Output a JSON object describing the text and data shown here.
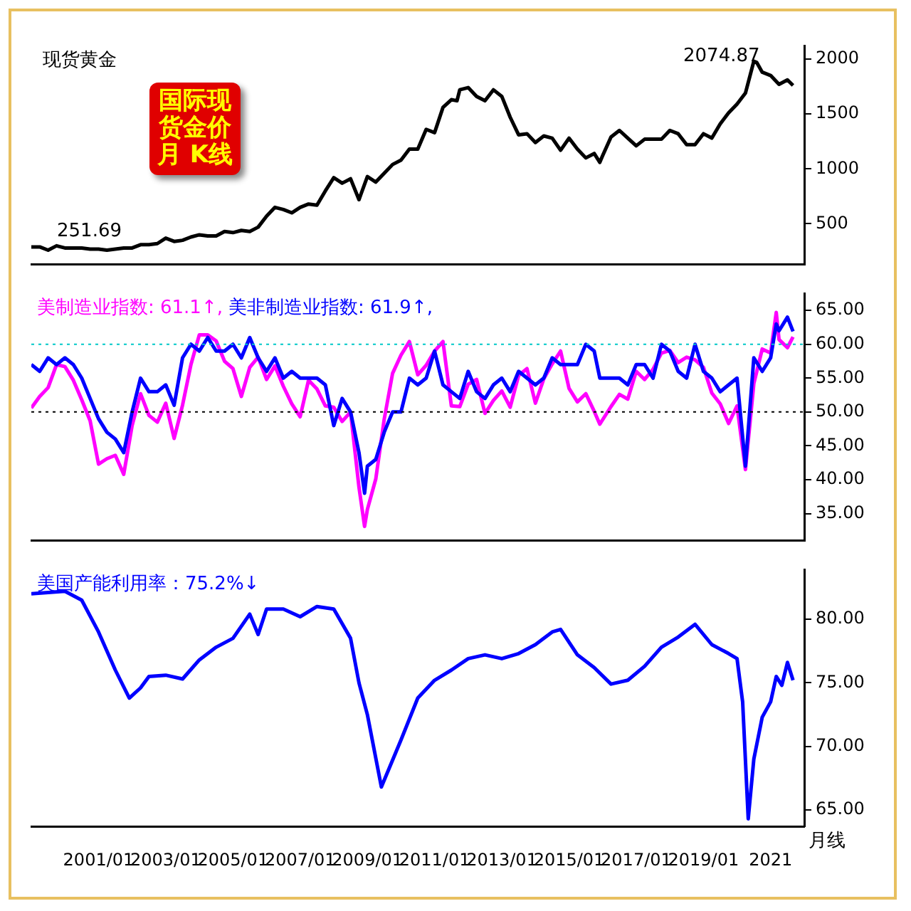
{
  "chart_data": [
    {
      "type": "line",
      "title": "现货黄金",
      "xlim": [
        "1999-01",
        "2022-01"
      ],
      "ylim": [
        130,
        2120
      ],
      "yticks": [
        500,
        1000,
        1500,
        2000
      ],
      "tick_labels": "y",
      "grid": false,
      "legend": false,
      "marker": "none",
      "annotations": [
        "国际现货金价月 K线",
        "2074.87",
        "251.69"
      ],
      "series": [
        {
          "color": "#000000",
          "x": [
            "1999-01",
            "1999-04",
            "1999-07",
            "1999-10",
            "2000-01",
            "2000-04",
            "2000-07",
            "2000-10",
            "2001-01",
            "2001-04",
            "2001-07",
            "2001-10",
            "2002-01",
            "2002-04",
            "2002-07",
            "2002-10",
            "2003-01",
            "2003-04",
            "2003-07",
            "2003-10",
            "2004-01",
            "2004-04",
            "2004-07",
            "2004-10",
            "2005-01",
            "2005-04",
            "2005-07",
            "2005-10",
            "2006-01",
            "2006-04",
            "2006-07",
            "2006-10",
            "2007-01",
            "2007-04",
            "2007-07",
            "2007-10",
            "2008-01",
            "2008-04",
            "2008-07",
            "2008-10",
            "2009-01",
            "2009-04",
            "2009-07",
            "2009-10",
            "2010-01",
            "2010-04",
            "2010-07",
            "2010-10",
            "2011-01",
            "2011-04",
            "2011-07",
            "2011-09",
            "2011-10",
            "2012-01",
            "2012-04",
            "2012-07",
            "2012-10",
            "2013-01",
            "2013-04",
            "2013-07",
            "2013-10",
            "2014-01",
            "2014-04",
            "2014-07",
            "2014-10",
            "2015-01",
            "2015-04",
            "2015-07",
            "2015-10",
            "2015-12",
            "2016-01",
            "2016-04",
            "2016-07",
            "2016-10",
            "2017-01",
            "2017-04",
            "2017-07",
            "2017-10",
            "2018-01",
            "2018-04",
            "2018-07",
            "2018-10",
            "2019-01",
            "2019-04",
            "2019-07",
            "2019-10",
            "2020-01",
            "2020-04",
            "2020-07",
            "2020-08",
            "2020-10",
            "2021-01",
            "2021-04",
            "2021-07",
            "2021-09"
          ],
          "values": [
            290,
            290,
            260,
            300,
            280,
            280,
            280,
            270,
            270,
            260,
            270,
            280,
            280,
            310,
            310,
            320,
            370,
            340,
            350,
            380,
            400,
            390,
            390,
            430,
            420,
            440,
            430,
            470,
            570,
            650,
            630,
            600,
            650,
            680,
            670,
            800,
            920,
            870,
            910,
            720,
            930,
            880,
            960,
            1040,
            1080,
            1180,
            1180,
            1360,
            1330,
            1560,
            1630,
            1620,
            1720,
            1740,
            1660,
            1620,
            1720,
            1660,
            1470,
            1310,
            1320,
            1240,
            1300,
            1280,
            1170,
            1280,
            1180,
            1100,
            1140,
            1060,
            1120,
            1290,
            1350,
            1280,
            1210,
            1270,
            1270,
            1270,
            1350,
            1320,
            1220,
            1220,
            1320,
            1280,
            1410,
            1510,
            1590,
            1690,
            1980,
            1970,
            1880,
            1850,
            1770,
            1810,
            1760
          ]
        }
      ]
    },
    {
      "type": "line",
      "xlim": [
        "1999-01",
        "2022-01"
      ],
      "ylim": [
        31,
        67.5
      ],
      "yticks": [
        {
          "value": 35,
          "label": "35.00"
        },
        {
          "value": 40,
          "label": "40.00"
        },
        {
          "value": 45,
          "label": "45.00"
        },
        {
          "value": 50,
          "label": "50.00"
        },
        {
          "value": 55,
          "label": "55.00"
        },
        {
          "value": 60,
          "label": "60.00"
        },
        {
          "value": 65,
          "label": "65.00"
        }
      ],
      "tick_labels": "y",
      "grid": false,
      "legend": "top left",
      "marker": "none",
      "ref_lines": [
        {
          "axis": "y",
          "value": 50,
          "color": "#000000",
          "line_style": "dotted"
        },
        {
          "axis": "y",
          "value": 60,
          "color": "#00c8c8",
          "line_style": "dotted"
        }
      ],
      "series": [
        {
          "name": "美制造业指数: 61.1↑,",
          "color": "#ff00ff",
          "x": [
            "1999-01",
            "1999-04",
            "1999-07",
            "1999-10",
            "2000-01",
            "2000-04",
            "2000-07",
            "2000-10",
            "2001-01",
            "2001-04",
            "2001-07",
            "2001-10",
            "2002-01",
            "2002-04",
            "2002-07",
            "2002-10",
            "2003-01",
            "2003-04",
            "2003-07",
            "2003-10",
            "2004-01",
            "2004-04",
            "2004-07",
            "2004-10",
            "2005-01",
            "2005-04",
            "2005-07",
            "2005-10",
            "2006-01",
            "2006-04",
            "2006-07",
            "2006-10",
            "2007-01",
            "2007-04",
            "2007-07",
            "2007-10",
            "2008-01",
            "2008-04",
            "2008-07",
            "2008-10",
            "2008-12",
            "2009-01",
            "2009-04",
            "2009-07",
            "2009-10",
            "2010-01",
            "2010-04",
            "2010-07",
            "2010-10",
            "2011-01",
            "2011-04",
            "2011-07",
            "2011-10",
            "2012-01",
            "2012-04",
            "2012-07",
            "2012-10",
            "2013-01",
            "2013-04",
            "2013-07",
            "2013-10",
            "2014-01",
            "2014-04",
            "2014-07",
            "2014-10",
            "2015-01",
            "2015-04",
            "2015-07",
            "2015-10",
            "2015-12",
            "2016-04",
            "2016-07",
            "2016-10",
            "2017-01",
            "2017-04",
            "2017-07",
            "2017-10",
            "2018-01",
            "2018-04",
            "2018-07",
            "2018-10",
            "2019-01",
            "2019-04",
            "2019-07",
            "2019-10",
            "2020-01",
            "2020-04",
            "2020-07",
            "2020-10",
            "2021-01",
            "2021-03",
            "2021-04",
            "2021-07",
            "2021-09"
          ],
          "values": [
            50.6,
            52.3,
            53.6,
            57.0,
            56.7,
            54.7,
            51.8,
            48.7,
            42.3,
            43.1,
            43.6,
            40.8,
            48.0,
            52.7,
            49.5,
            48.5,
            51.3,
            46.1,
            51.0,
            57.0,
            61.4,
            61.4,
            60.5,
            57.5,
            56.4,
            52.3,
            56.6,
            58.1,
            54.8,
            56.8,
            53.8,
            51.2,
            49.3,
            54.7,
            53.4,
            50.9,
            50.7,
            48.6,
            50.0,
            38.9,
            33.1,
            35.6,
            40.1,
            48.9,
            55.7,
            58.4,
            60.4,
            55.5,
            56.9,
            59.0,
            60.4,
            50.9,
            50.8,
            54.1,
            54.8,
            49.8,
            51.7,
            53.1,
            50.7,
            55.4,
            56.4,
            51.3,
            54.9,
            57.1,
            59.0,
            53.5,
            51.5,
            52.7,
            50.1,
            48.2,
            50.8,
            52.6,
            51.9,
            56.0,
            54.8,
            56.3,
            58.7,
            59.1,
            57.3,
            58.1,
            57.7,
            56.6,
            52.8,
            51.2,
            48.3,
            50.9,
            41.5,
            54.2,
            59.3,
            58.7,
            64.7,
            60.7,
            59.5,
            61.1
          ]
        },
        {
          "name": "美非制造业指数: 61.9↑,",
          "color": "#0000ff",
          "x": [
            "1999-01",
            "1999-04",
            "1999-07",
            "1999-10",
            "2000-01",
            "2000-04",
            "2000-07",
            "2000-10",
            "2001-01",
            "2001-04",
            "2001-07",
            "2001-10",
            "2002-01",
            "2002-04",
            "2002-07",
            "2002-10",
            "2003-01",
            "2003-04",
            "2003-07",
            "2003-10",
            "2004-01",
            "2004-04",
            "2004-07",
            "2004-10",
            "2005-01",
            "2005-04",
            "2005-07",
            "2005-10",
            "2006-01",
            "2006-04",
            "2006-07",
            "2006-10",
            "2007-01",
            "2007-04",
            "2007-07",
            "2007-10",
            "2008-01",
            "2008-04",
            "2008-07",
            "2008-10",
            "2008-12",
            "2009-01",
            "2009-04",
            "2009-07",
            "2009-10",
            "2010-01",
            "2010-04",
            "2010-07",
            "2010-10",
            "2011-01",
            "2011-04",
            "2011-07",
            "2011-10",
            "2012-01",
            "2012-04",
            "2012-07",
            "2012-10",
            "2013-01",
            "2013-04",
            "2013-07",
            "2013-10",
            "2014-01",
            "2014-04",
            "2014-07",
            "2014-10",
            "2015-01",
            "2015-04",
            "2015-07",
            "2015-10",
            "2015-12",
            "2016-04",
            "2016-07",
            "2016-10",
            "2017-01",
            "2017-04",
            "2017-07",
            "2017-10",
            "2018-01",
            "2018-04",
            "2018-07",
            "2018-10",
            "2019-01",
            "2019-04",
            "2019-07",
            "2019-10",
            "2020-01",
            "2020-04",
            "2020-07",
            "2020-10",
            "2021-01",
            "2021-03",
            "2021-04",
            "2021-07",
            "2021-09"
          ],
          "values": [
            57,
            56,
            58,
            57,
            58,
            57,
            55,
            52,
            49,
            47,
            46,
            44,
            50,
            55,
            53,
            53,
            54,
            51,
            58,
            60,
            59,
            61,
            59,
            59,
            60,
            58,
            61,
            58,
            56,
            58,
            55,
            56,
            55,
            55,
            55,
            54,
            48,
            52,
            50,
            44,
            38,
            42,
            43,
            47,
            50,
            50,
            55,
            54,
            55,
            59,
            54,
            53,
            52,
            56,
            53,
            52,
            54,
            55,
            53,
            56,
            55,
            54,
            55,
            58,
            57,
            57,
            57,
            60,
            59,
            55,
            55,
            55,
            54,
            57,
            57,
            55,
            60,
            59,
            56,
            55,
            60,
            56,
            55,
            53,
            54,
            55,
            42,
            58,
            56,
            58,
            63,
            62,
            64,
            61.9
          ]
        }
      ]
    },
    {
      "type": "line",
      "xlabel": "月线",
      "xlim": [
        "1999-01",
        "2022-01"
      ],
      "xticks": [
        {
          "value": "2001-01",
          "label": "2001/01"
        },
        {
          "value": "2003-01",
          "label": "2003/01"
        },
        {
          "value": "2005-01",
          "label": "2005/01"
        },
        {
          "value": "2007-01",
          "label": "2007/01"
        },
        {
          "value": "2009-01",
          "label": "2009/01"
        },
        {
          "value": "2011-01",
          "label": "2011/01"
        },
        {
          "value": "2013-01",
          "label": "2013/01"
        },
        {
          "value": "2015-01",
          "label": "2015/01"
        },
        {
          "value": "2017-01",
          "label": "2017/01"
        },
        {
          "value": "2019-01",
          "label": "2019/01"
        },
        {
          "value": "2021-01",
          "label": "2021"
        }
      ],
      "ylim": [
        63.7,
        83.9
      ],
      "yticks": [
        {
          "value": 65,
          "label": "65.00"
        },
        {
          "value": 70,
          "label": "70.00"
        },
        {
          "value": 75,
          "label": "75.00"
        },
        {
          "value": 80,
          "label": "80.00"
        }
      ],
      "grid": false,
      "legend": "top left",
      "marker": "none",
      "series": [
        {
          "name": "美国产能利用率：75.2%↓",
          "color": "#0000ff",
          "x": [
            "1999-01",
            "2000-01",
            "2000-07",
            "2001-01",
            "2001-07",
            "2001-12",
            "2002-04",
            "2002-07",
            "2003-01",
            "2003-07",
            "2004-01",
            "2004-07",
            "2005-01",
            "2005-07",
            "2005-10",
            "2006-01",
            "2006-07",
            "2007-01",
            "2007-07",
            "2008-01",
            "2008-07",
            "2008-10",
            "2009-01",
            "2009-06",
            "2010-01",
            "2010-07",
            "2011-01",
            "2011-07",
            "2012-01",
            "2012-07",
            "2013-01",
            "2013-07",
            "2014-01",
            "2014-07",
            "2014-10",
            "2015-04",
            "2015-10",
            "2016-04",
            "2016-10",
            "2017-04",
            "2017-10",
            "2018-04",
            "2018-10",
            "2019-04",
            "2019-10",
            "2020-01",
            "2020-03",
            "2020-05",
            "2020-07",
            "2020-10",
            "2021-01",
            "2021-03",
            "2021-05",
            "2021-07",
            "2021-09"
          ],
          "values": [
            82.0,
            82.2,
            81.5,
            79.0,
            76.0,
            73.8,
            74.6,
            75.5,
            75.6,
            75.3,
            76.8,
            77.8,
            78.5,
            80.4,
            78.8,
            80.8,
            80.8,
            80.2,
            81.0,
            80.8,
            78.5,
            75.0,
            72.5,
            66.8,
            70.5,
            73.8,
            75.2,
            76.0,
            76.9,
            77.2,
            76.9,
            77.3,
            78.0,
            79.0,
            79.2,
            77.2,
            76.2,
            74.9,
            75.2,
            76.3,
            77.8,
            78.6,
            79.6,
            78.0,
            77.3,
            76.9,
            73.5,
            64.3,
            69.0,
            72.3,
            73.5,
            75.5,
            74.8,
            76.6,
            75.2
          ]
        }
      ]
    }
  ]
}
